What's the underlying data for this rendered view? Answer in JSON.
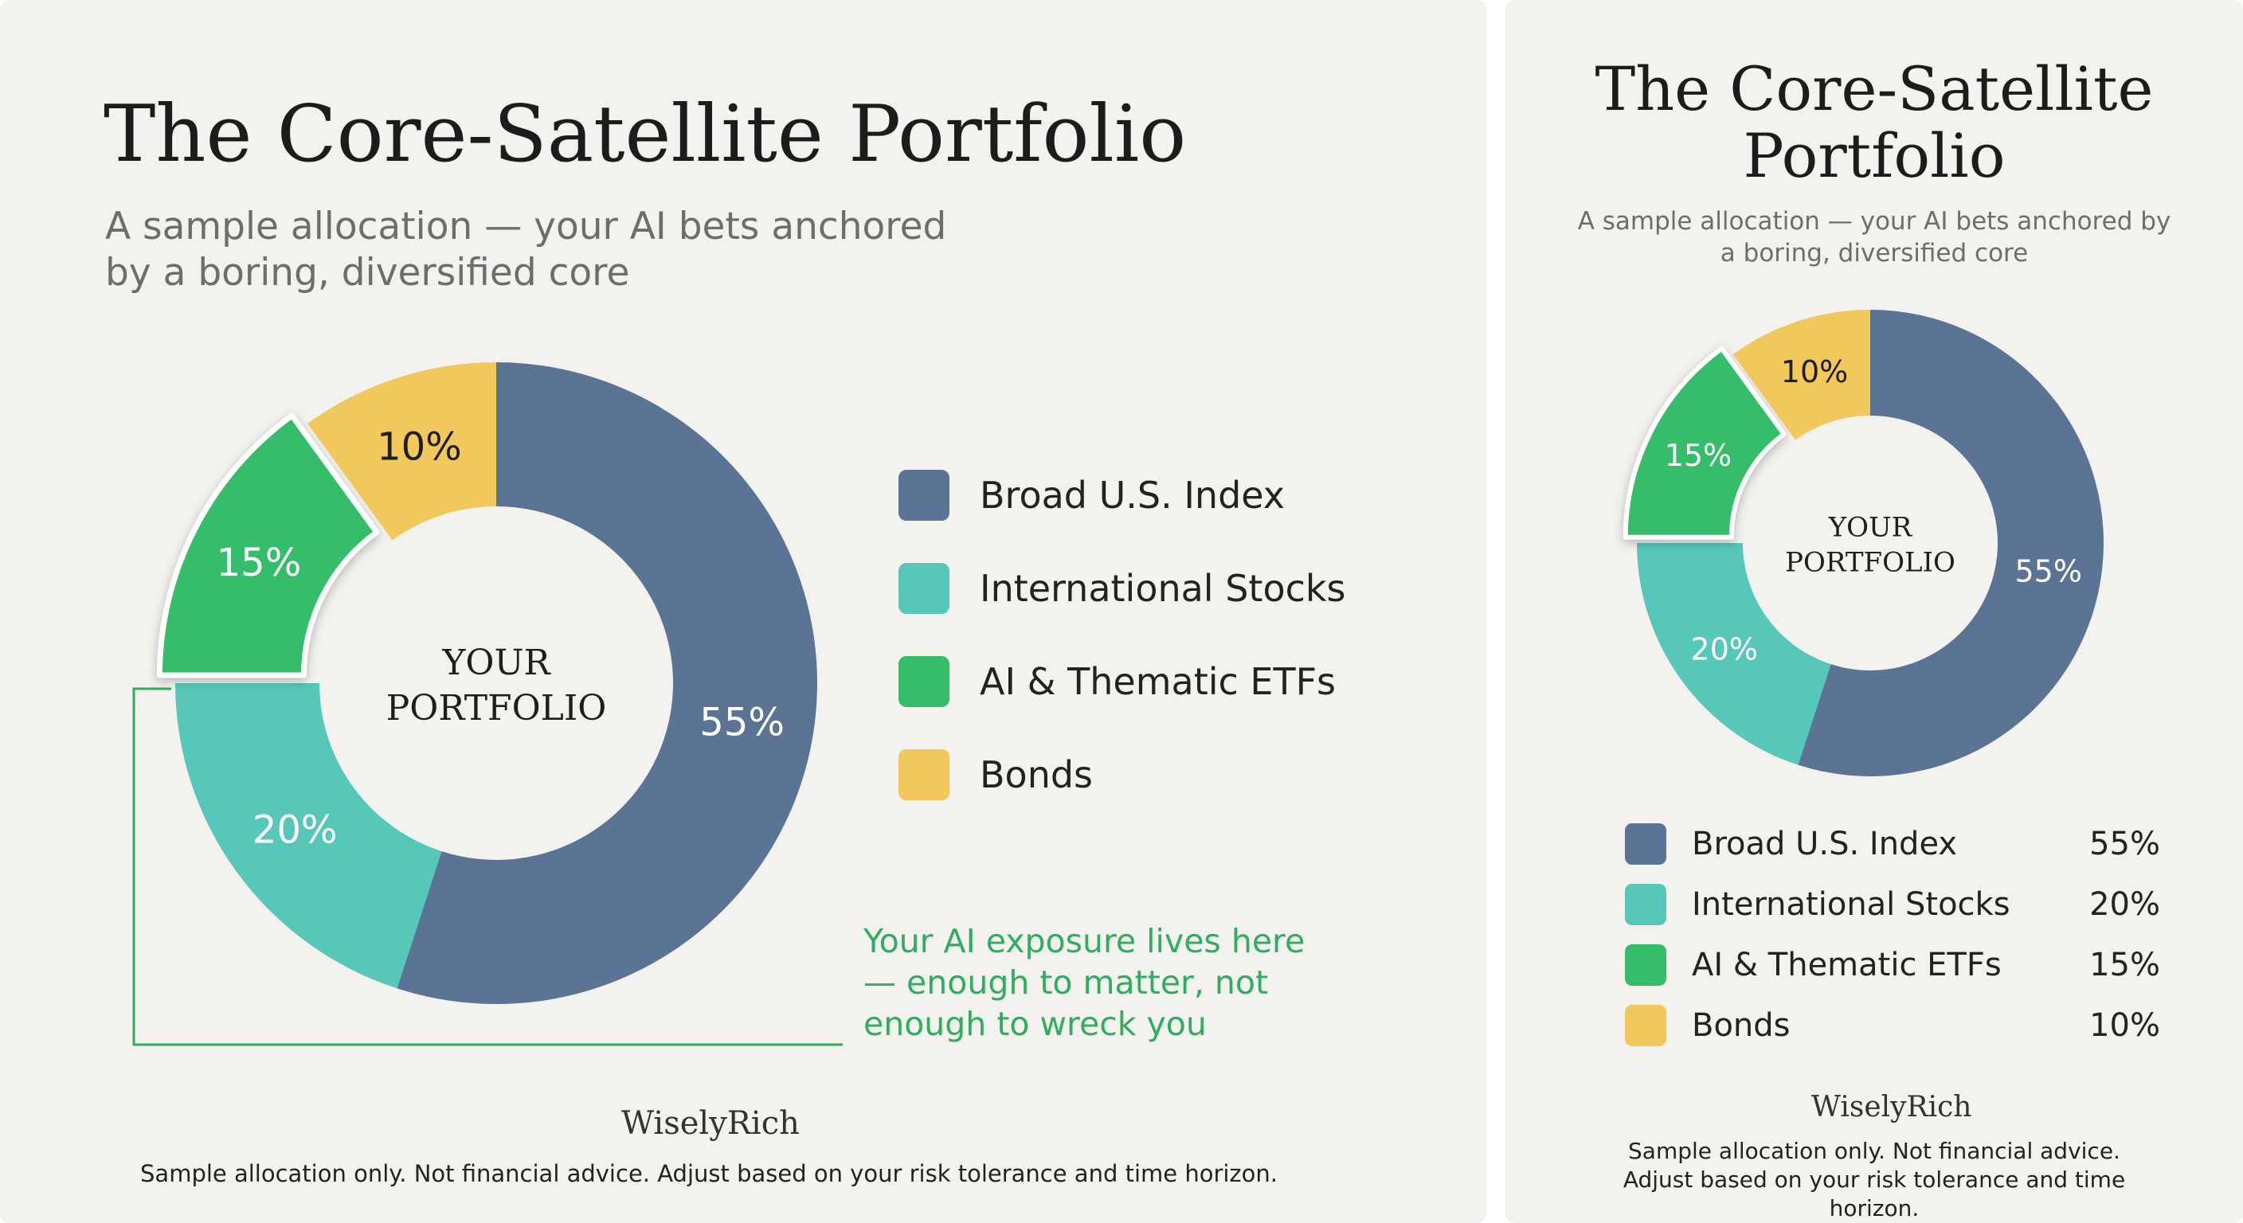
{
  "wide": {
    "title": "The Core-Satellite Portfolio",
    "subtitle": "A sample allocation — your AI bets anchored by a boring, diversified core",
    "center_label_line1": "YOUR",
    "center_label_line2": "PORTFOLIO",
    "annotation": "Your AI exposure lives here — enough to matter, not enough to wreck you",
    "brand": "WiselyRich",
    "disclaimer": "Sample allocation only. Not financial advice. Adjust based on your risk tolerance and time horizon."
  },
  "narrow": {
    "title": "The Core-Satellite Portfolio",
    "subtitle": "A sample allocation — your AI bets anchored by a boring, diversified core",
    "center_label_line1": "YOUR",
    "center_label_line2": "PORTFOLIO",
    "brand": "WiselyRich",
    "disclaimer": "Sample allocation only. Not financial advice. Adjust based on your risk tolerance and time horizon."
  },
  "chart_data": {
    "type": "pie",
    "variant": "donut",
    "categories": [
      "Broad U.S. Index",
      "International Stocks",
      "AI & Thematic ETFs",
      "Bonds"
    ],
    "values": [
      55,
      20,
      15,
      10
    ],
    "labels": [
      "55%",
      "20%",
      "15%",
      "10%"
    ],
    "colors": [
      "#5b7394",
      "#56c7b8",
      "#35bd6a",
      "#f2c75b"
    ],
    "highlighted": "AI & Thematic ETFs",
    "legend_position": "right"
  }
}
